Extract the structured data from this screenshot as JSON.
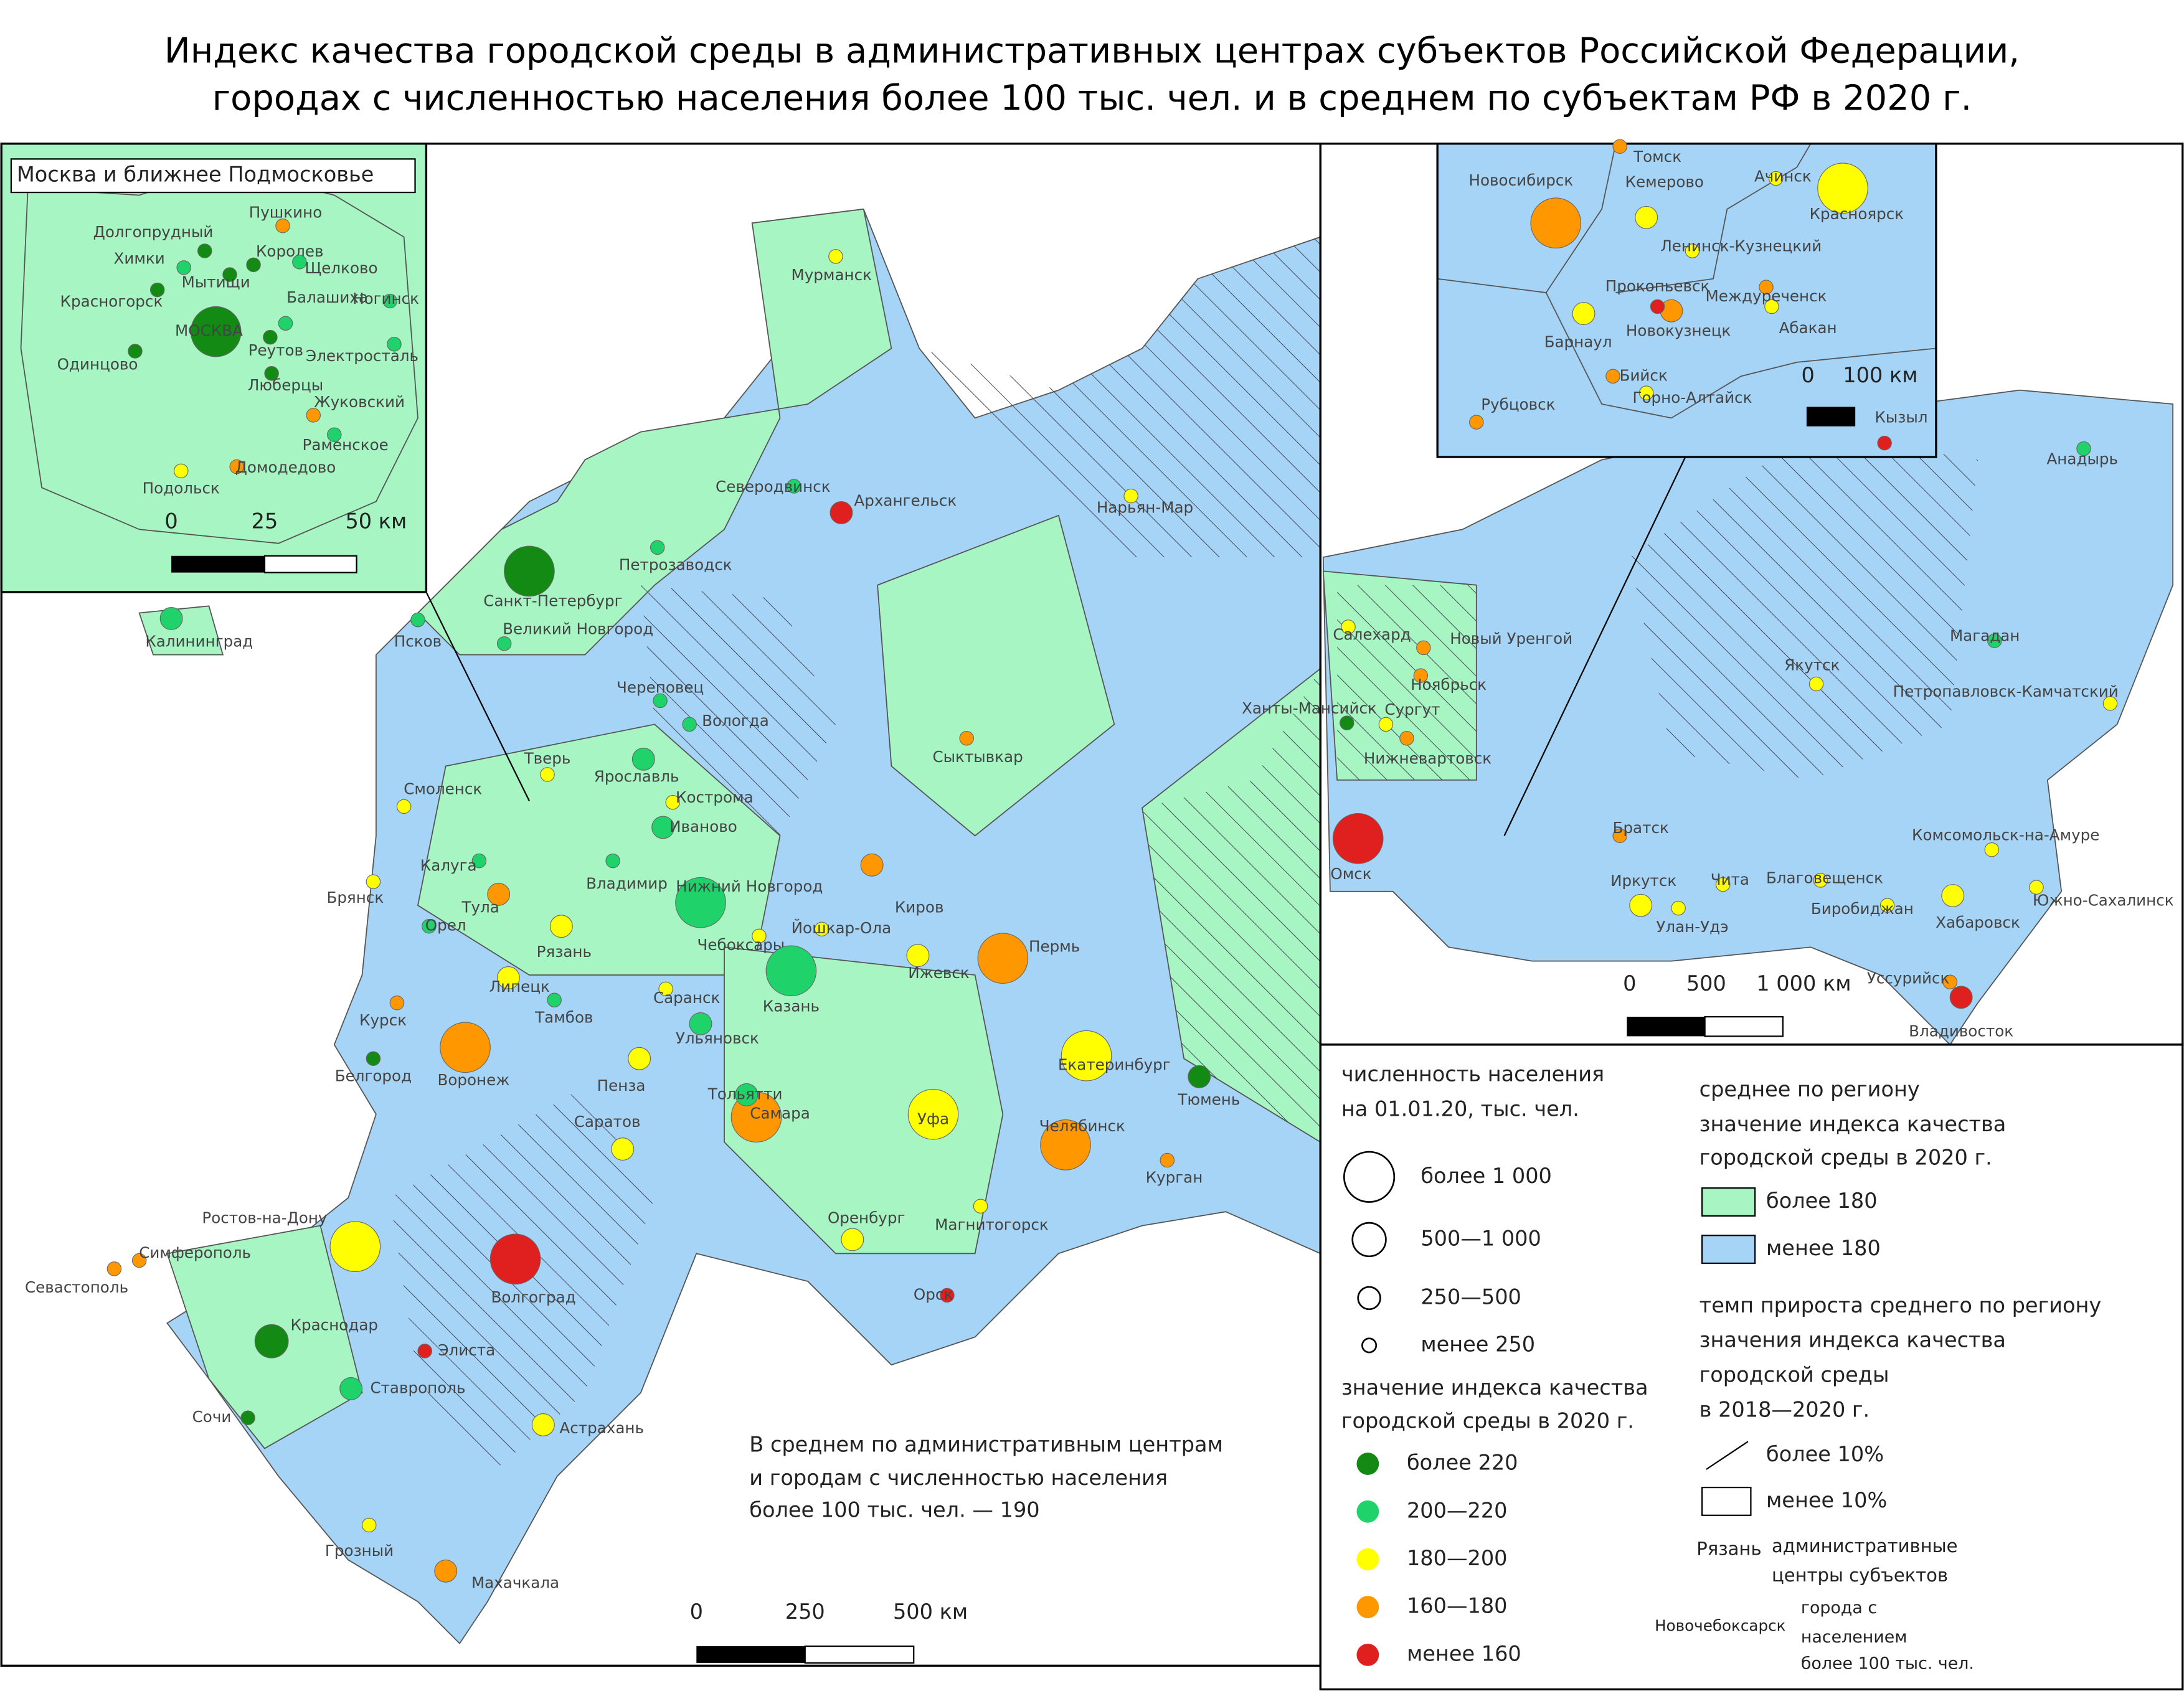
{
  "title": [
    "Индекс качества городской среды в административных центрах субъектов Российской Федерации,",
    "городах с численностью населения более 100 тыс. чел. и в среднем по субъектам РФ в 2020 г."
  ],
  "moscow_inset": {
    "title": "Москва и ближнее Подмосковье",
    "scale": [
      "0",
      "25",
      "50 км"
    ]
  },
  "main_scale": [
    "0",
    "250",
    "500 км"
  ],
  "siberia_scale": [
    "0",
    "500",
    "1 000 км"
  ],
  "inset_scale": [
    "0",
    "100 км"
  ],
  "average_note": [
    "В среднем по административным центрам",
    "и городам с численностью населения",
    "более 100 тыс. чел. — 190"
  ],
  "legend": {
    "population_title": [
      "численность населения",
      "на 01.01.20, тыс. чел."
    ],
    "population_classes": [
      "более 1 000",
      "500—1 000",
      "250—500",
      "менее 250"
    ],
    "quality_title": [
      "значение индекса качества",
      "городской среды в 2020 г."
    ],
    "quality_classes": [
      {
        "label": "более 220",
        "color": "#138a13"
      },
      {
        "label": "200—220",
        "color": "#1fd36a"
      },
      {
        "label": "180—200",
        "color": "#ffff00"
      },
      {
        "label": "160—180",
        "color": "#ff9800"
      },
      {
        "label": "менее 160",
        "color": "#e0201e"
      }
    ],
    "region_title": [
      "среднее по региону",
      "значение индекса качества",
      "городской среды в 2020 г."
    ],
    "region_classes": [
      {
        "label": "более 180",
        "color": "#a6f5c2"
      },
      {
        "label": "менее 180",
        "color": "#a6d4f7"
      }
    ],
    "growth_title": [
      "темп прироста среднего по региону",
      "значения индекса качества",
      "городской среды",
      "в 2018—2020 г."
    ],
    "growth_classes": [
      "более 10%",
      "менее 10%"
    ],
    "admin_example": "Рязань",
    "admin_text": [
      "административные",
      "центры субъектов"
    ],
    "city_example": "Новочебоксарск",
    "city_text": [
      "города с",
      "населением",
      "более 100 тыс. чел."
    ]
  },
  "main_cities": [
    {
      "name": "Санкт-Петербург",
      "quality": 0,
      "population": 0
    },
    {
      "name": "Великий Новгород",
      "quality": 1,
      "population": 3
    },
    {
      "name": "Петрозаводск",
      "quality": 1,
      "population": 3
    },
    {
      "name": "Мурманск",
      "quality": 2,
      "population": 3
    },
    {
      "name": "Архангельск",
      "quality": 4,
      "population": 2
    },
    {
      "name": "Северодвинск",
      "quality": 1,
      "population": 3
    },
    {
      "name": "Нарьян-Мар",
      "quality": 2,
      "population": 3
    },
    {
      "name": "Калининград",
      "quality": 1,
      "population": 2
    },
    {
      "name": "Псков",
      "quality": 1,
      "population": 3
    },
    {
      "name": "Вологда",
      "quality": 1,
      "population": 3
    },
    {
      "name": "Череповец",
      "quality": 1,
      "population": 3
    },
    {
      "name": "Сыктывкар",
      "quality": 3,
      "population": 3
    },
    {
      "name": "Тверь",
      "quality": 2,
      "population": 3
    },
    {
      "name": "Ярославль",
      "quality": 1,
      "population": 2
    },
    {
      "name": "Кострома",
      "quality": 2,
      "population": 3
    },
    {
      "name": "Смоленск",
      "quality": 2,
      "population": 3
    },
    {
      "name": "Иваново",
      "quality": 1,
      "population": 2
    },
    {
      "name": "Владимир",
      "quality": 1,
      "population": 3
    },
    {
      "name": "Калуга",
      "quality": 1,
      "population": 3
    },
    {
      "name": "Тула",
      "quality": 3,
      "population": 2
    },
    {
      "name": "Брянск",
      "quality": 2,
      "population": 3
    },
    {
      "name": "Рязань",
      "quality": 2,
      "population": 2
    },
    {
      "name": "Нижний Новгород",
      "quality": 1,
      "population": 0
    },
    {
      "name": "Киров",
      "quality": 3,
      "population": 2
    },
    {
      "name": "Пермь",
      "quality": 3,
      "population": 0
    },
    {
      "name": "Орел",
      "quality": 1,
      "population": 3
    },
    {
      "name": "Чебоксары",
      "quality": 2,
      "population": 3
    },
    {
      "name": "Йошкар-Ола",
      "quality": 2,
      "population": 3
    },
    {
      "name": "Казань",
      "quality": 1,
      "population": 0
    },
    {
      "name": "Ижевск",
      "quality": 2,
      "population": 2
    },
    {
      "name": "Липецк",
      "quality": 2,
      "population": 2
    },
    {
      "name": "Курск",
      "quality": 3,
      "population": 3
    },
    {
      "name": "Тамбов",
      "quality": 1,
      "population": 3
    },
    {
      "name": "Воронеж",
      "quality": 3,
      "population": 0
    },
    {
      "name": "Белгород",
      "quality": 0,
      "population": 3
    },
    {
      "name": "Пенза",
      "quality": 2,
      "population": 2
    },
    {
      "name": "Ульяновск",
      "quality": 1,
      "population": 2
    },
    {
      "name": "Саранск",
      "quality": 2,
      "population": 3
    },
    {
      "name": "Екатеринбург",
      "quality": 2,
      "population": 0
    },
    {
      "name": "Тюмень",
      "quality": 0,
      "population": 2
    },
    {
      "name": "Самара",
      "quality": 3,
      "population": 0
    },
    {
      "name": "Тольятти",
      "quality": 1,
      "population": 2
    },
    {
      "name": "Уфа",
      "quality": 2,
      "population": 0
    },
    {
      "name": "Челябинск",
      "quality": 3,
      "population": 0
    },
    {
      "name": "Курган",
      "quality": 3,
      "population": 3
    },
    {
      "name": "Саратов",
      "quality": 2,
      "population": 2
    },
    {
      "name": "Оренбург",
      "quality": 2,
      "population": 2
    },
    {
      "name": "Магнитогорск",
      "quality": 2,
      "population": 3
    },
    {
      "name": "Орск",
      "quality": 4,
      "population": 3
    },
    {
      "name": "Волгоград",
      "quality": 4,
      "population": 0
    },
    {
      "name": "Астрахань",
      "quality": 2,
      "population": 2
    },
    {
      "name": "Ростов-на-Дону",
      "quality": 2,
      "population": 0
    },
    {
      "name": "Краснодар",
      "quality": 0,
      "population": 1
    },
    {
      "name": "Ставрополь",
      "quality": 1,
      "population": 2
    },
    {
      "name": "Симферополь",
      "quality": 3,
      "population": 3
    },
    {
      "name": "Севастополь",
      "quality": 3,
      "population": 3
    },
    {
      "name": "Сочи",
      "quality": 0,
      "population": 3
    },
    {
      "name": "Махачкала",
      "quality": 3,
      "population": 2
    },
    {
      "name": "Грозный",
      "quality": 2,
      "population": 3
    },
    {
      "name": "Элиста",
      "quality": 4,
      "population": 3
    }
  ],
  "moscow_cities": [
    {
      "name": "МОСКВА",
      "quality": 0,
      "population": 0
    },
    {
      "name": "Балашиха",
      "quality": 1,
      "population": 3
    },
    {
      "name": "Химки",
      "quality": 1,
      "population": 3
    },
    {
      "name": "Подольск",
      "quality": 2,
      "population": 3
    },
    {
      "name": "Королев",
      "quality": 0,
      "population": 3
    },
    {
      "name": "Мытищи",
      "quality": 0,
      "population": 3
    },
    {
      "name": "Люберцы",
      "quality": 0,
      "population": 3
    },
    {
      "name": "Пушкино",
      "quality": 3,
      "population": 3
    },
    {
      "name": "Щелково",
      "quality": 1,
      "population": 3
    },
    {
      "name": "Ногинск",
      "quality": 1,
      "population": 3
    },
    {
      "name": "Электросталь",
      "quality": 1,
      "population": 3
    },
    {
      "name": "Жуковский",
      "quality": 3,
      "population": 3
    },
    {
      "name": "Раменское",
      "quality": 1,
      "population": 3
    },
    {
      "name": "Домодедово",
      "quality": 3,
      "population": 3
    },
    {
      "name": "Одинцово",
      "quality": 0,
      "population": 3
    },
    {
      "name": "Красногорск",
      "quality": 0,
      "population": 3
    },
    {
      "name": "Долгопрудный",
      "quality": 0,
      "population": 3
    },
    {
      "name": "Реутов",
      "quality": 0,
      "population": 3
    }
  ],
  "siberia_cities": [
    {
      "name": "Омск",
      "quality": 4,
      "population": 0
    },
    {
      "name": "Салехард",
      "quality": 2,
      "population": 3
    },
    {
      "name": "Новый Уренгой",
      "quality": 3,
      "population": 3
    },
    {
      "name": "Ноябрьск",
      "quality": 3,
      "population": 3
    },
    {
      "name": "Сургут",
      "quality": 2,
      "population": 3
    },
    {
      "name": "Ханты-Мансийск",
      "quality": 0,
      "population": 3
    },
    {
      "name": "Нижневартовск",
      "quality": 3,
      "population": 3
    },
    {
      "name": "Якутск",
      "quality": 2,
      "population": 3
    },
    {
      "name": "Магадан",
      "quality": 1,
      "population": 3
    },
    {
      "name": "Петропавловск-Камчатский",
      "quality": 2,
      "population": 3
    },
    {
      "name": "Анадырь",
      "quality": 1,
      "population": 3
    },
    {
      "name": "Братск",
      "quality": 3,
      "population": 3
    },
    {
      "name": "Иркутск",
      "quality": 2,
      "population": 2
    },
    {
      "name": "Чита",
      "quality": 2,
      "population": 3
    },
    {
      "name": "Улан-Удэ",
      "quality": 2,
      "population": 3
    },
    {
      "name": "Благовещенск",
      "quality": 2,
      "population": 3
    },
    {
      "name": "Хабаровск",
      "quality": 2,
      "population": 2
    },
    {
      "name": "Комсомольск-на-Амуре",
      "quality": 2,
      "population": 3
    },
    {
      "name": "Южно-Сахалинск",
      "quality": 2,
      "population": 3
    },
    {
      "name": "Владивосток",
      "quality": 4,
      "population": 2
    },
    {
      "name": "Уссурийск",
      "quality": 3,
      "population": 3
    },
    {
      "name": "Биробиджан",
      "quality": 2,
      "population": 3
    }
  ],
  "inset_cities": [
    {
      "name": "Новосибирск",
      "quality": 3,
      "population": 0
    },
    {
      "name": "Томск",
      "quality": 3,
      "population": 3
    },
    {
      "name": "Кемерово",
      "quality": 2,
      "population": 2
    },
    {
      "name": "Ачинск",
      "quality": 2,
      "population": 3
    },
    {
      "name": "Красноярск",
      "quality": 2,
      "population": 0
    },
    {
      "name": "Барнаул",
      "quality": 2,
      "population": 2
    },
    {
      "name": "Новокузнецк",
      "quality": 3,
      "population": 2
    },
    {
      "name": "Прокопьевск",
      "quality": 4,
      "population": 3
    },
    {
      "name": "Абакан",
      "quality": 2,
      "population": 3
    },
    {
      "name": "Бийск",
      "quality": 3,
      "population": 3
    },
    {
      "name": "Рубцовск",
      "quality": 3,
      "population": 3
    },
    {
      "name": "Горно-Алтайск",
      "quality": 2,
      "population": 3
    },
    {
      "name": "Кызыл",
      "quality": 4,
      "population": 3
    },
    {
      "name": "Междуреченск",
      "quality": 3,
      "population": 3
    },
    {
      "name": "Ленинск-Кузнецкий",
      "quality": 2,
      "population": 3
    }
  ]
}
